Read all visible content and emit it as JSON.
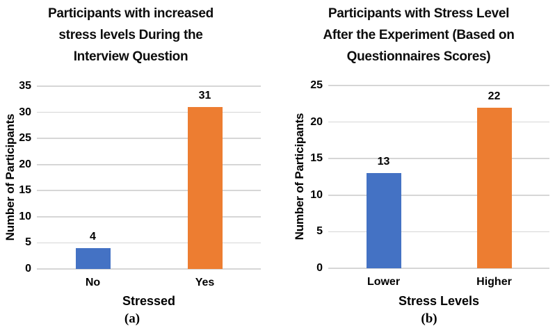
{
  "styles": {
    "grid_color": "#d6d6d6",
    "text_color": "#000000",
    "blue": "#4472C4",
    "orange": "#ED7D31"
  },
  "chart_data": [
    {
      "type": "bar",
      "title": "Participants with increased stress levels During the Interview Question",
      "title_lines": [
        "Participants with increased",
        "stress levels During the",
        "Interview Question"
      ],
      "categories": [
        "No",
        "Yes"
      ],
      "values": [
        4,
        31
      ],
      "data_labels": [
        "4",
        "31"
      ],
      "bar_colors": [
        "#4472C4",
        "#ED7D31"
      ],
      "xlabel": "Stressed",
      "ylabel": "Number of Participants",
      "ylim": [
        0,
        35
      ],
      "yticks": [
        0,
        5,
        10,
        15,
        20,
        25,
        30,
        35
      ],
      "grid": "horizontal",
      "legend": "none",
      "caption": "(a)"
    },
    {
      "type": "bar",
      "title": "Participants with Stress Level After the Experiment (Based on Questionnaires Scores)",
      "title_lines": [
        "Participants with Stress Level",
        "After the Experiment (Based on",
        "Questionnaires Scores)"
      ],
      "categories": [
        "Lower",
        "Higher"
      ],
      "values": [
        13,
        22
      ],
      "data_labels": [
        "13",
        "22"
      ],
      "bar_colors": [
        "#4472C4",
        "#ED7D31"
      ],
      "xlabel": "Stress Levels",
      "ylabel": "Number of Participants",
      "ylim": [
        0,
        25
      ],
      "yticks": [
        0,
        5,
        10,
        15,
        20,
        25
      ],
      "grid": "horizontal",
      "legend": "none",
      "caption": "(b)"
    }
  ]
}
